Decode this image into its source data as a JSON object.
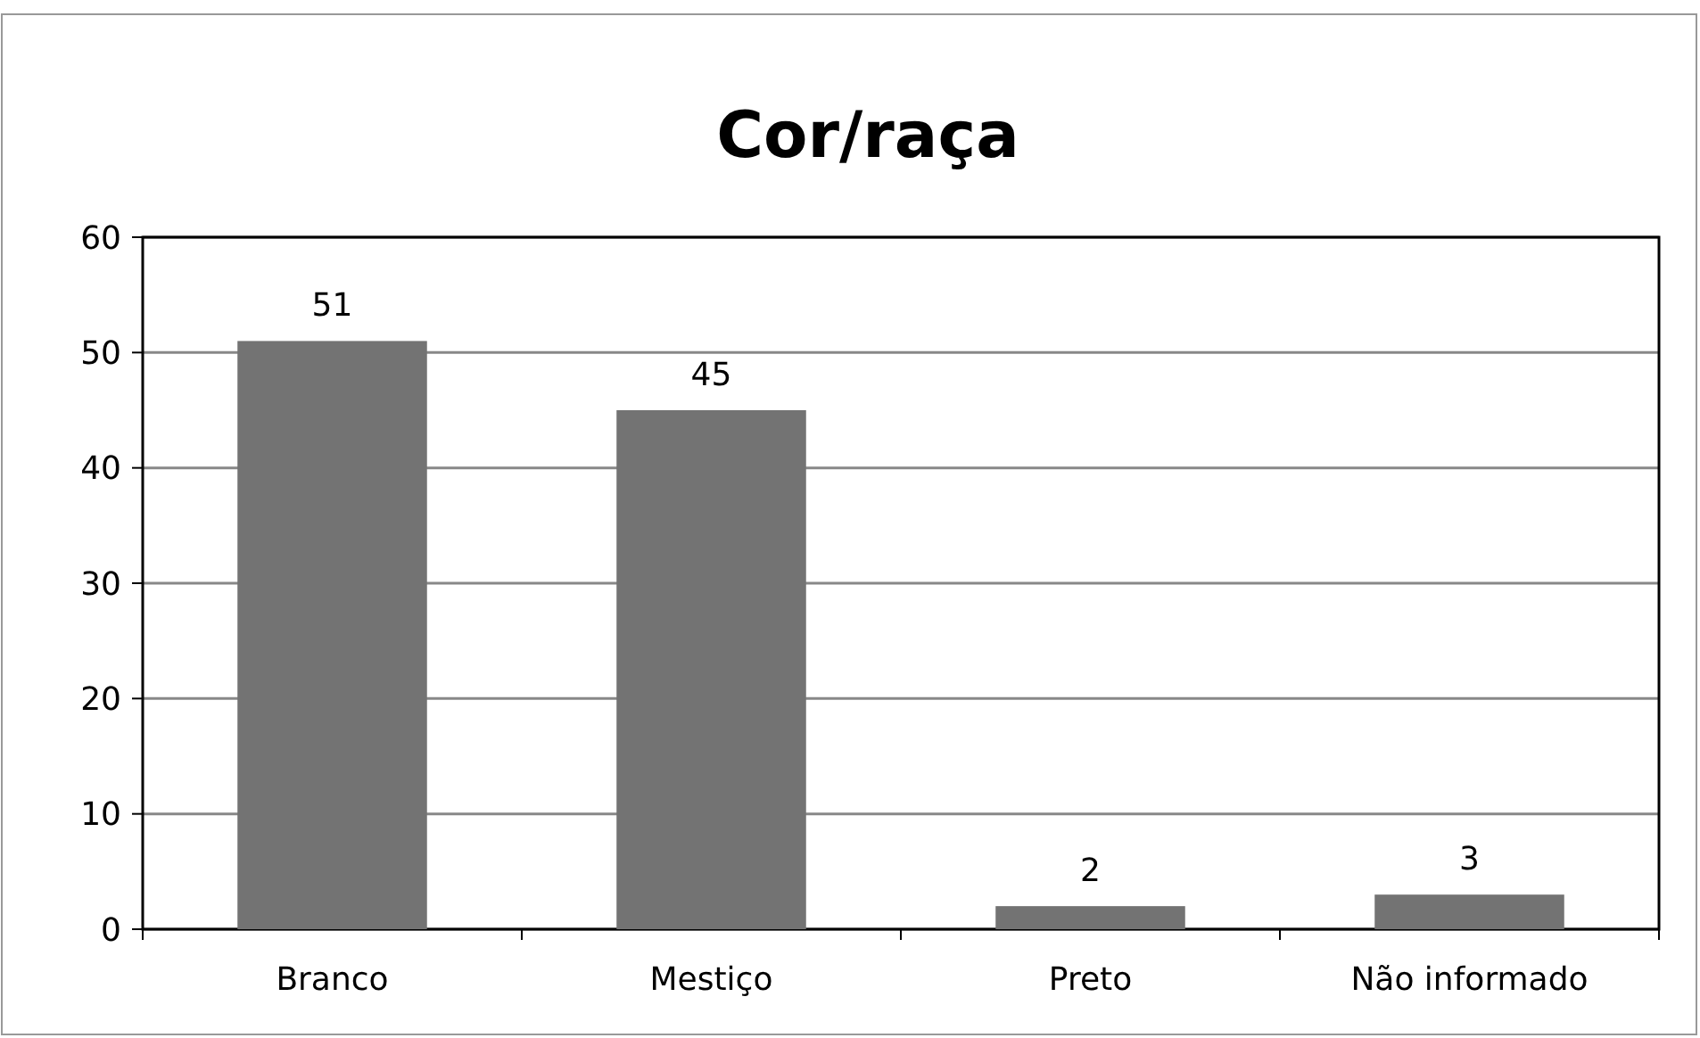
{
  "chart_data": {
    "type": "bar",
    "title": "Cor/raça",
    "categories": [
      "Branco",
      "Mestiço",
      "Preto",
      "Não informado"
    ],
    "values": [
      51,
      45,
      2,
      3
    ],
    "color": "#737373",
    "ylim": [
      0,
      60
    ],
    "yticks": [
      0,
      10,
      20,
      30,
      40,
      50,
      60
    ],
    "grid": "y",
    "data_labels": true
  }
}
